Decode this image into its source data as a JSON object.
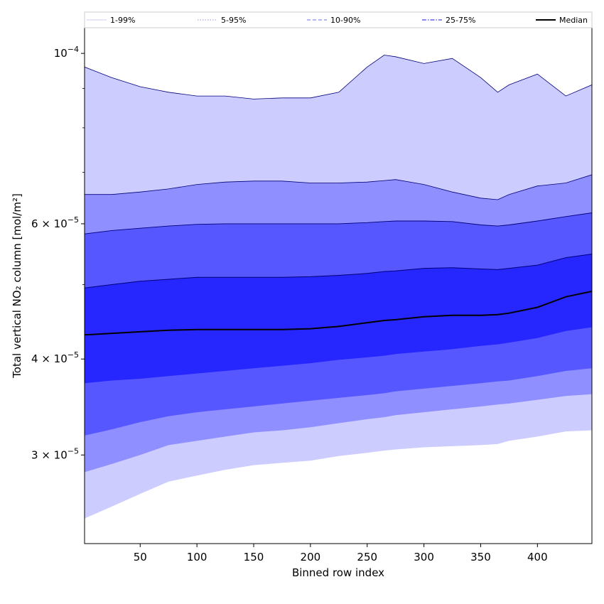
{
  "chart_data": {
    "type": "area",
    "xlabel": "Binned row index",
    "ylabel": "Total vertical NO₂ column [mol/m²]",
    "xlim": [
      1,
      448
    ],
    "ylim": [
      2.3e-05,
      0.000108
    ],
    "yscale": "log",
    "grid": false,
    "legend_position": "top",
    "x_ticks": [
      50,
      100,
      150,
      200,
      250,
      300,
      350,
      400
    ],
    "x_tick_labels": [
      "50",
      "100",
      "150",
      "200",
      "250",
      "300",
      "350",
      "400"
    ],
    "y_ticks": [
      3e-05,
      4e-05,
      6e-05,
      0.0001
    ],
    "y_tick_labels": [
      {
        "mantissa": "3",
        "exponent": "−5"
      },
      {
        "mantissa": "4",
        "exponent": "−5"
      },
      {
        "mantissa": "6",
        "exponent": "−5"
      },
      {
        "mantissa": "",
        "exponent": "−4"
      }
    ],
    "colors": {
      "band_1_99": "#ccccff",
      "band_5_95": "#8f8fff",
      "band_10_90": "#5757ff",
      "band_25_75": "#2626ff",
      "median": "#000000",
      "upper_edge": "#00007a"
    },
    "legend": [
      {
        "label": "1-99%",
        "color": "#d6d6f0",
        "style": "solid"
      },
      {
        "label": "5-95%",
        "color": "#aaaadd",
        "style": "dotted"
      },
      {
        "label": "10-90%",
        "color": "#8888ee",
        "style": "dashed"
      },
      {
        "label": "25-75%",
        "color": "#4444ee",
        "style": "dashdot"
      },
      {
        "label": "Median",
        "color": "#000000",
        "style": "solid"
      }
    ],
    "x": [
      1,
      25,
      50,
      75,
      100,
      125,
      150,
      175,
      200,
      225,
      250,
      265,
      275,
      300,
      325,
      350,
      365,
      375,
      400,
      425,
      448
    ],
    "percentiles": {
      "p1": [
        2.48e-05,
        2.57e-05,
        2.67e-05,
        2.77e-05,
        2.82e-05,
        2.87e-05,
        2.91e-05,
        2.93e-05,
        2.95e-05,
        2.99e-05,
        3.02e-05,
        3.04e-05,
        3.05e-05,
        3.07e-05,
        3.08e-05,
        3.09e-05,
        3.1e-05,
        3.13e-05,
        3.17e-05,
        3.22e-05,
        3.23e-05
      ],
      "p5": [
        2.85e-05,
        2.92e-05,
        3e-05,
        3.09e-05,
        3.13e-05,
        3.17e-05,
        3.21e-05,
        3.23e-05,
        3.26e-05,
        3.3e-05,
        3.34e-05,
        3.36e-05,
        3.38e-05,
        3.41e-05,
        3.44e-05,
        3.47e-05,
        3.49e-05,
        3.5e-05,
        3.54e-05,
        3.58e-05,
        3.6e-05
      ],
      "p10": [
        3.18e-05,
        3.24e-05,
        3.31e-05,
        3.37e-05,
        3.41e-05,
        3.44e-05,
        3.47e-05,
        3.5e-05,
        3.53e-05,
        3.56e-05,
        3.59e-05,
        3.61e-05,
        3.63e-05,
        3.66e-05,
        3.69e-05,
        3.72e-05,
        3.74e-05,
        3.75e-05,
        3.8e-05,
        3.86e-05,
        3.89e-05
      ],
      "p25": [
        3.72e-05,
        3.75e-05,
        3.77e-05,
        3.8e-05,
        3.83e-05,
        3.86e-05,
        3.89e-05,
        3.92e-05,
        3.95e-05,
        3.99e-05,
        4.02e-05,
        4.04e-05,
        4.06e-05,
        4.09e-05,
        4.12e-05,
        4.16e-05,
        4.18e-05,
        4.2e-05,
        4.26e-05,
        4.35e-05,
        4.4e-05
      ],
      "p50": [
        4.3e-05,
        4.32e-05,
        4.34e-05,
        4.36e-05,
        4.37e-05,
        4.37e-05,
        4.37e-05,
        4.37e-05,
        4.38e-05,
        4.41e-05,
        4.46e-05,
        4.49e-05,
        4.5e-05,
        4.54e-05,
        4.56e-05,
        4.56e-05,
        4.57e-05,
        4.59e-05,
        4.67e-05,
        4.82e-05,
        4.9e-05
      ],
      "p75": [
        4.95e-05,
        5e-05,
        5.05e-05,
        5.08e-05,
        5.11e-05,
        5.11e-05,
        5.11e-05,
        5.11e-05,
        5.12e-05,
        5.14e-05,
        5.17e-05,
        5.2e-05,
        5.21e-05,
        5.25e-05,
        5.26e-05,
        5.24e-05,
        5.23e-05,
        5.25e-05,
        5.3e-05,
        5.42e-05,
        5.48e-05
      ],
      "p90": [
        5.82e-05,
        5.88e-05,
        5.92e-05,
        5.96e-05,
        5.99e-05,
        6e-05,
        6e-05,
        6e-05,
        6e-05,
        6e-05,
        6.02e-05,
        6.04e-05,
        6.05e-05,
        6.05e-05,
        6.04e-05,
        5.98e-05,
        5.96e-05,
        5.98e-05,
        6.05e-05,
        6.13e-05,
        6.2e-05
      ],
      "p95": [
        6.55e-05,
        6.55e-05,
        6.6e-05,
        6.66e-05,
        6.75e-05,
        6.8e-05,
        6.82e-05,
        6.82e-05,
        6.78e-05,
        6.78e-05,
        6.8e-05,
        6.83e-05,
        6.85e-05,
        6.75e-05,
        6.6e-05,
        6.48e-05,
        6.45e-05,
        6.55e-05,
        6.72e-05,
        6.78e-05,
        6.95e-05
      ],
      "p99": [
        9.6e-05,
        9.3e-05,
        9.05e-05,
        8.9e-05,
        8.8e-05,
        8.8e-05,
        8.72e-05,
        8.75e-05,
        8.75e-05,
        8.9e-05,
        9.6e-05,
        9.95e-05,
        9.9e-05,
        9.7e-05,
        9.85e-05,
        9.3e-05,
        8.9e-05,
        9.1e-05,
        9.4e-05,
        8.8e-05,
        9.1e-05
      ]
    }
  }
}
